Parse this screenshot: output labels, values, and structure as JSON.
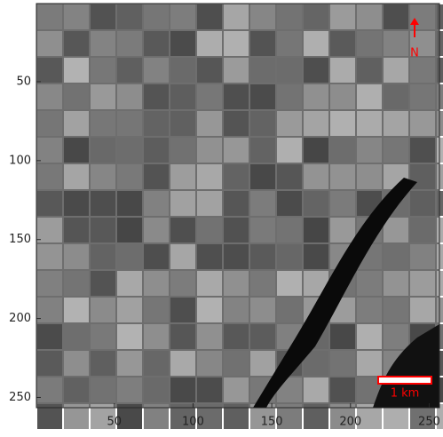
{
  "chart_data": {
    "type": "image",
    "xlim": [
      0.5,
      256.5
    ],
    "ylim": [
      0.5,
      256.5
    ],
    "xticks": [
      50,
      100,
      150,
      200,
      250
    ],
    "yticks": [
      50,
      100,
      150,
      200,
      250
    ],
    "y_reversed": true,
    "north_label": "N",
    "scale_label": "1 km",
    "annotation_color": "#ff0000"
  }
}
